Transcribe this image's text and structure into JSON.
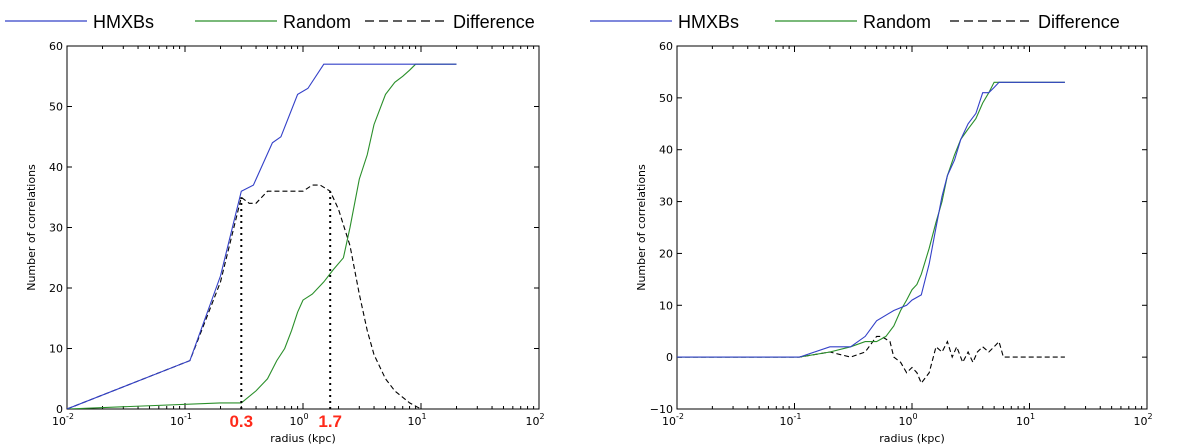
{
  "colors": {
    "hmxb": "#3340c8",
    "random": "#2a8f2a",
    "difference": "#000000",
    "marker": "#ff2a1a"
  },
  "chart_data": [
    {
      "type": "line",
      "xscale": "log",
      "xlim": [
        0.01,
        100
      ],
      "ylim": [
        0,
        60
      ],
      "xlabel": "radius (kpc)",
      "ylabel": "Number of correlations",
      "xticks": [
        {
          "value": 0.01,
          "base": "10",
          "exp": "-2"
        },
        {
          "value": 0.1,
          "base": "10",
          "exp": "-1"
        },
        {
          "value": 1,
          "base": "10",
          "exp": "0"
        },
        {
          "value": 10,
          "base": "10",
          "exp": "1"
        },
        {
          "value": 100,
          "base": "10",
          "exp": "2"
        }
      ],
      "yticks": [
        "0",
        "10",
        "20",
        "30",
        "40",
        "50",
        "60"
      ],
      "legend_position": "top",
      "series": [
        {
          "name": "HMXBs",
          "style": "solid",
          "color": "#3340c8",
          "x": [
            0.01,
            0.11,
            0.2,
            0.3,
            0.38,
            0.55,
            0.65,
            0.9,
            1.1,
            1.5,
            20
          ],
          "y": [
            0,
            8,
            22,
            36,
            37,
            44,
            45,
            52,
            53,
            57,
            57
          ]
        },
        {
          "name": "Random",
          "style": "solid",
          "color": "#2a8f2a",
          "x": [
            0.01,
            0.2,
            0.3,
            0.4,
            0.5,
            0.6,
            0.7,
            0.8,
            0.9,
            1.0,
            1.2,
            1.5,
            1.8,
            2.2,
            2.5,
            3.0,
            3.5,
            4.0,
            5.0,
            6.0,
            7.0,
            8.0,
            9.0,
            20
          ],
          "y": [
            0,
            1,
            1,
            3,
            5,
            8,
            10,
            13,
            16,
            18,
            19,
            21,
            23,
            25,
            30,
            38,
            42,
            47,
            52,
            54,
            55,
            56,
            57,
            57
          ]
        },
        {
          "name": "Difference",
          "style": "dashed",
          "color": "#000000",
          "x": [
            0.01,
            0.11,
            0.2,
            0.3,
            0.35,
            0.4,
            0.5,
            0.7,
            1.0,
            1.2,
            1.4,
            1.7,
            2.0,
            2.5,
            3.0,
            3.5,
            4.0,
            5.0,
            6.0,
            8.0,
            10.0,
            20
          ],
          "y": [
            0,
            8,
            21,
            35,
            34,
            34,
            36,
            36,
            36,
            37,
            37,
            36,
            33,
            27,
            19,
            13,
            9,
            5,
            3,
            1,
            0,
            0
          ]
        }
      ],
      "markers": [
        {
          "x": 0.3,
          "label": "0.3"
        },
        {
          "x": 1.7,
          "label": "1.7"
        }
      ]
    },
    {
      "type": "line",
      "xscale": "log",
      "xlim": [
        0.01,
        100
      ],
      "ylim": [
        -10,
        60
      ],
      "xlabel": "radius (kpc)",
      "ylabel": "Number of correlations",
      "xticks": [
        {
          "value": 0.01,
          "base": "10",
          "exp": "-2"
        },
        {
          "value": 0.1,
          "base": "10",
          "exp": "-1"
        },
        {
          "value": 1,
          "base": "10",
          "exp": "0"
        },
        {
          "value": 10,
          "base": "10",
          "exp": "1"
        },
        {
          "value": 100,
          "base": "10",
          "exp": "2"
        }
      ],
      "yticks": [
        "−10",
        "0",
        "10",
        "20",
        "30",
        "40",
        "50",
        "60"
      ],
      "legend_position": "top",
      "series": [
        {
          "name": "HMXBs",
          "style": "solid",
          "color": "#3340c8",
          "x": [
            0.01,
            0.11,
            0.2,
            0.3,
            0.4,
            0.5,
            0.7,
            0.9,
            1.0,
            1.2,
            1.4,
            1.6,
            1.8,
            2.0,
            2.3,
            2.6,
            3.0,
            3.5,
            4.0,
            4.5,
            5.0,
            5.5,
            6.0,
            20
          ],
          "y": [
            0,
            0,
            2,
            2,
            4,
            7,
            9,
            10,
            11,
            12,
            18,
            25,
            31,
            35,
            38,
            42,
            45,
            47,
            51,
            51,
            52,
            53,
            53,
            53
          ]
        },
        {
          "name": "Random",
          "style": "solid",
          "color": "#2a8f2a",
          "x": [
            0.01,
            0.11,
            0.2,
            0.3,
            0.4,
            0.5,
            0.6,
            0.7,
            0.8,
            0.9,
            1.0,
            1.1,
            1.2,
            1.4,
            1.6,
            1.8,
            2.0,
            2.3,
            2.6,
            3.0,
            3.5,
            4.0,
            4.5,
            5.0,
            6.0,
            20
          ],
          "y": [
            0,
            0,
            1,
            2,
            3,
            3,
            4,
            6,
            9,
            11,
            13,
            14,
            16,
            21,
            26,
            30,
            35,
            39,
            42,
            44,
            46,
            49,
            51,
            53,
            53,
            53
          ]
        },
        {
          "name": "Difference",
          "style": "dashed",
          "color": "#000000",
          "x": [
            0.01,
            0.11,
            0.2,
            0.3,
            0.4,
            0.5,
            0.55,
            0.65,
            0.7,
            0.8,
            0.9,
            1.0,
            1.1,
            1.2,
            1.4,
            1.6,
            1.8,
            2.0,
            2.2,
            2.4,
            2.7,
            3.0,
            3.3,
            3.6,
            4.0,
            4.5,
            5.0,
            5.5,
            6.0,
            6.5,
            20
          ],
          "y": [
            0,
            0,
            1,
            0,
            1,
            4,
            4,
            3,
            0,
            -1,
            -3,
            -2,
            -3,
            -5,
            -3,
            2,
            1,
            3,
            0,
            2,
            -1,
            1,
            -1,
            1,
            2,
            1,
            2,
            3,
            0,
            0,
            0
          ]
        }
      ]
    }
  ]
}
